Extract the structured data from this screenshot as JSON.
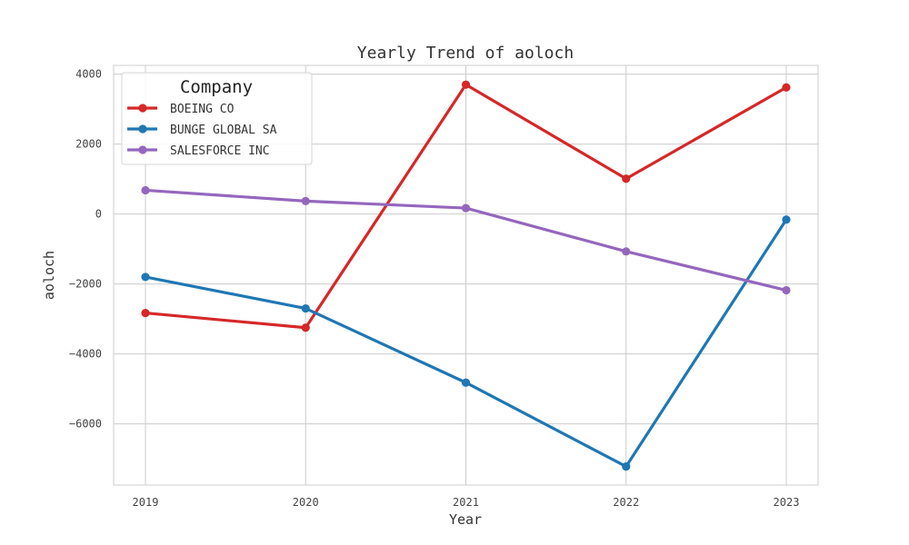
{
  "chart_data": {
    "type": "line",
    "title": "Yearly Trend of aoloch",
    "xlabel": "Year",
    "ylabel": "aoloch",
    "x": [
      "2019",
      "2020",
      "2021",
      "2022",
      "2023"
    ],
    "ylim": [
      -7750,
      4250
    ],
    "yticks": [
      4000,
      2000,
      0,
      -2000,
      -4000,
      -6000
    ],
    "ytick_labels": [
      "4000",
      "2000",
      "0",
      "−2000",
      "−4000",
      "−6000"
    ],
    "grid": true,
    "legend": {
      "title": "Company",
      "placement": "top-left"
    },
    "series": [
      {
        "name": "BOEING CO",
        "color": "#d62728",
        "values": [
          -2830,
          -3250,
          3700,
          1010,
          3620
        ]
      },
      {
        "name": "BUNGE GLOBAL SA",
        "color": "#1f77b4",
        "values": [
          -1800,
          -2700,
          -4820,
          -7220,
          -160
        ]
      },
      {
        "name": "SALESFORCE INC",
        "color": "#9467bd",
        "values": [
          680,
          370,
          170,
          -1070,
          -2180
        ]
      }
    ]
  }
}
